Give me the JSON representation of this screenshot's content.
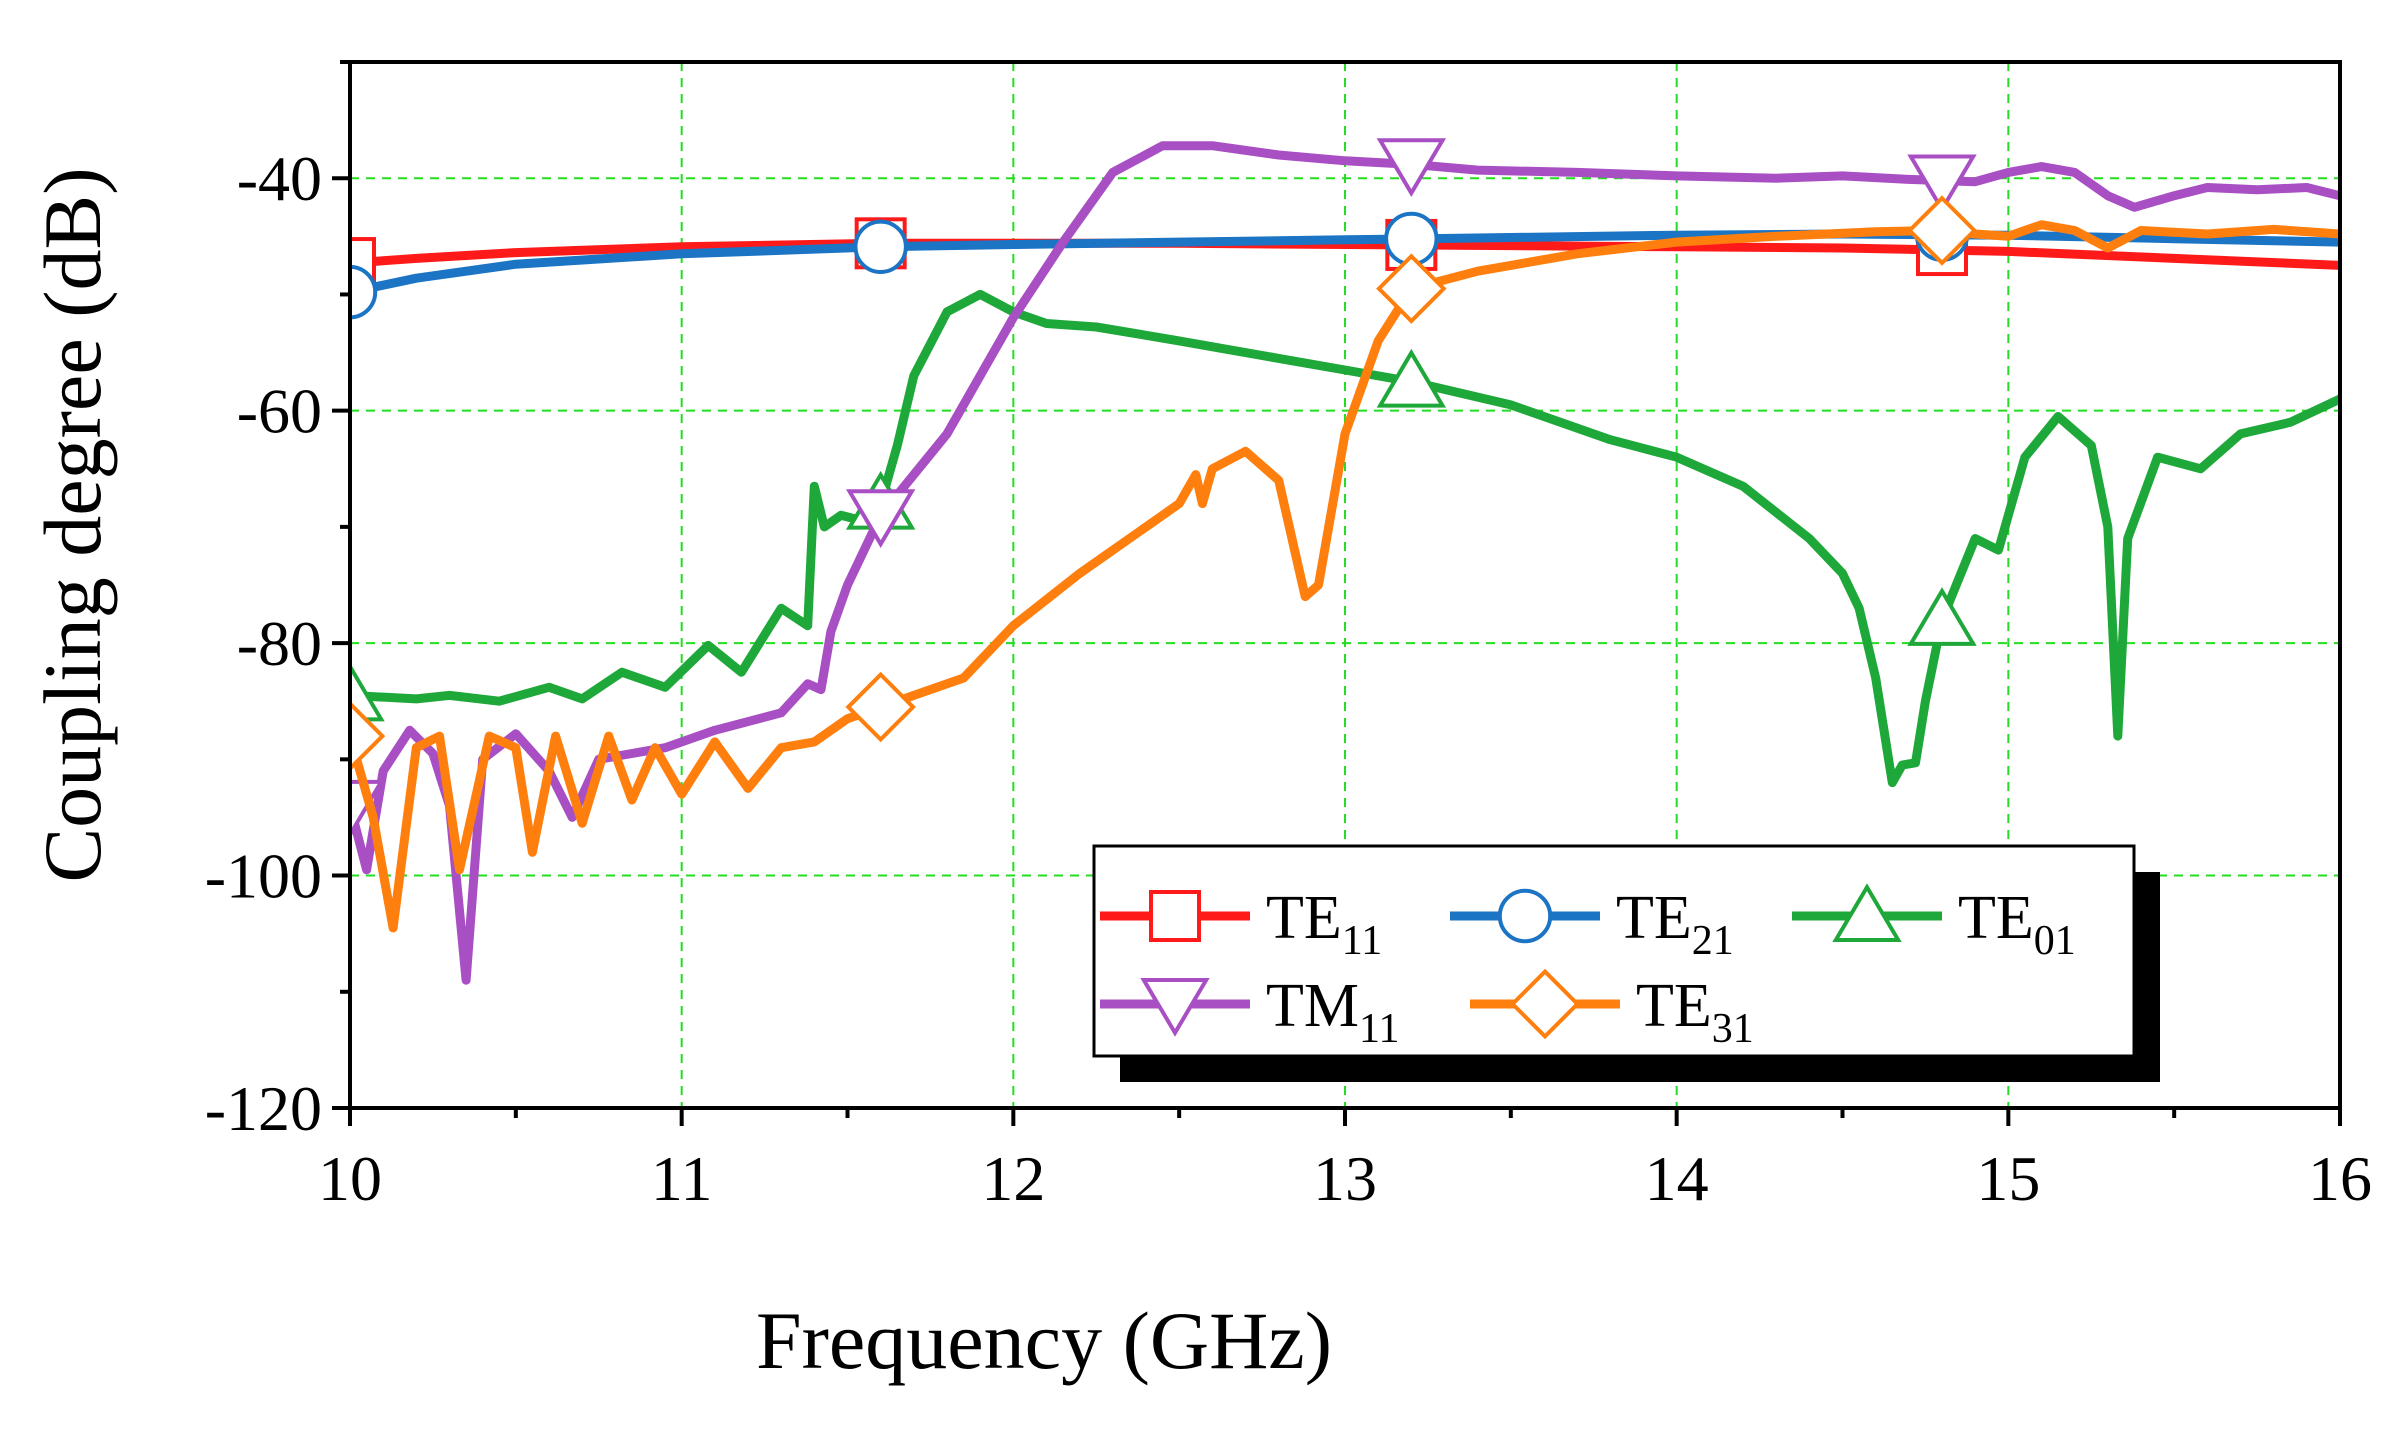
{
  "chart_data": {
    "type": "line",
    "title": "",
    "xlabel": "Frequency (GHz)",
    "ylabel": "Coupling degree (dB)",
    "xlim": [
      10,
      16
    ],
    "ylim": [
      -120,
      -30
    ],
    "x_ticks": [
      10,
      11,
      12,
      13,
      14,
      15,
      16
    ],
    "x_tick_labels": [
      "10",
      "11",
      "12",
      "13",
      "14",
      "15",
      "16"
    ],
    "y_ticks": [
      -40,
      -60,
      -80,
      -100,
      -120
    ],
    "y_tick_labels": [
      "-40",
      "-60",
      "-80",
      "-100",
      "-120"
    ],
    "grid": true,
    "legend_position": "bottom-right",
    "series": [
      {
        "name": "TE11",
        "base": "TE",
        "sub": "11",
        "color": "#ff1a1a",
        "marker": "square",
        "marker_x": [
          10.0,
          11.6,
          13.2,
          14.8
        ],
        "points": [
          [
            10.0,
            -47.3
          ],
          [
            10.2,
            -46.9
          ],
          [
            10.5,
            -46.4
          ],
          [
            11.0,
            -45.9
          ],
          [
            11.6,
            -45.6
          ],
          [
            12.0,
            -45.6
          ],
          [
            12.5,
            -45.6
          ],
          [
            13.0,
            -45.7
          ],
          [
            13.5,
            -45.8
          ],
          [
            14.0,
            -45.9
          ],
          [
            14.5,
            -46.0
          ],
          [
            15.0,
            -46.3
          ],
          [
            15.5,
            -46.9
          ],
          [
            16.0,
            -47.5
          ]
        ]
      },
      {
        "name": "TE21",
        "base": "TE",
        "sub": "21",
        "color": "#1c74c4",
        "marker": "circle",
        "marker_x": [
          10.0,
          11.6,
          13.2,
          14.8
        ],
        "points": [
          [
            10.0,
            -49.8
          ],
          [
            10.2,
            -48.6
          ],
          [
            10.5,
            -47.4
          ],
          [
            11.0,
            -46.5
          ],
          [
            11.6,
            -45.9
          ],
          [
            12.0,
            -45.7
          ],
          [
            12.5,
            -45.5
          ],
          [
            13.0,
            -45.3
          ],
          [
            13.5,
            -45.1
          ],
          [
            14.0,
            -44.9
          ],
          [
            14.5,
            -44.8
          ],
          [
            15.0,
            -44.9
          ],
          [
            15.5,
            -45.2
          ],
          [
            16.0,
            -45.5
          ]
        ]
      },
      {
        "name": "TE01",
        "base": "TE",
        "sub": "01",
        "color": "#1fa83a",
        "marker": "triangle-up",
        "marker_x": [
          10.0,
          11.6,
          13.2,
          14.8
        ],
        "points": [
          [
            10.0,
            -84.5
          ],
          [
            10.2,
            -84.8
          ],
          [
            10.3,
            -84.5
          ],
          [
            10.45,
            -85.0
          ],
          [
            10.6,
            -83.8
          ],
          [
            10.7,
            -84.8
          ],
          [
            10.82,
            -82.5
          ],
          [
            10.95,
            -83.8
          ],
          [
            11.08,
            -80.2
          ],
          [
            11.18,
            -82.5
          ],
          [
            11.3,
            -77.0
          ],
          [
            11.38,
            -78.5
          ],
          [
            11.4,
            -66.5
          ],
          [
            11.43,
            -70.0
          ],
          [
            11.48,
            -69.0
          ],
          [
            11.55,
            -69.5
          ],
          [
            11.6,
            -68.0
          ],
          [
            11.65,
            -63.0
          ],
          [
            11.7,
            -57.0
          ],
          [
            11.8,
            -51.5
          ],
          [
            11.9,
            -50.0
          ],
          [
            12.0,
            -51.5
          ],
          [
            12.1,
            -52.5
          ],
          [
            12.25,
            -52.8
          ],
          [
            12.5,
            -54.0
          ],
          [
            12.8,
            -55.5
          ],
          [
            13.0,
            -56.5
          ],
          [
            13.2,
            -57.5
          ],
          [
            13.5,
            -59.5
          ],
          [
            13.8,
            -62.5
          ],
          [
            14.0,
            -64.0
          ],
          [
            14.2,
            -66.5
          ],
          [
            14.4,
            -71.0
          ],
          [
            14.5,
            -74.0
          ],
          [
            14.55,
            -77.0
          ],
          [
            14.6,
            -83.0
          ],
          [
            14.65,
            -92.0
          ],
          [
            14.68,
            -90.5
          ],
          [
            14.72,
            -90.3
          ],
          [
            14.75,
            -85.0
          ],
          [
            14.8,
            -78.0
          ],
          [
            14.9,
            -71.0
          ],
          [
            14.97,
            -72.0
          ],
          [
            15.05,
            -64.0
          ],
          [
            15.15,
            -60.5
          ],
          [
            15.25,
            -63.0
          ],
          [
            15.3,
            -70.0
          ],
          [
            15.33,
            -88.0
          ],
          [
            15.36,
            -71.0
          ],
          [
            15.45,
            -64.0
          ],
          [
            15.58,
            -65.0
          ],
          [
            15.7,
            -62.0
          ],
          [
            15.85,
            -61.0
          ],
          [
            16.0,
            -59.0
          ]
        ]
      },
      {
        "name": "TM11",
        "base": "TM",
        "sub": "11",
        "color": "#a84fc4",
        "marker": "triangle-down",
        "marker_x": [
          10.0,
          11.6,
          13.2,
          14.8
        ],
        "points": [
          [
            10.0,
            -94.0
          ],
          [
            10.05,
            -99.5
          ],
          [
            10.1,
            -91.0
          ],
          [
            10.18,
            -87.5
          ],
          [
            10.25,
            -89.5
          ],
          [
            10.3,
            -94.0
          ],
          [
            10.35,
            -109.0
          ],
          [
            10.4,
            -90.0
          ],
          [
            10.5,
            -87.8
          ],
          [
            10.6,
            -91.0
          ],
          [
            10.67,
            -95.0
          ],
          [
            10.75,
            -90.0
          ],
          [
            10.85,
            -89.5
          ],
          [
            10.95,
            -89.0
          ],
          [
            11.1,
            -87.5
          ],
          [
            11.3,
            -86.0
          ],
          [
            11.38,
            -83.5
          ],
          [
            11.42,
            -84.0
          ],
          [
            11.45,
            -79.0
          ],
          [
            11.5,
            -75.0
          ],
          [
            11.6,
            -69.0
          ],
          [
            11.8,
            -62.0
          ],
          [
            12.0,
            -52.0
          ],
          [
            12.15,
            -45.5
          ],
          [
            12.3,
            -39.5
          ],
          [
            12.45,
            -37.2
          ],
          [
            12.6,
            -37.2
          ],
          [
            12.8,
            -38.0
          ],
          [
            13.0,
            -38.5
          ],
          [
            13.2,
            -38.8
          ],
          [
            13.4,
            -39.3
          ],
          [
            13.7,
            -39.5
          ],
          [
            14.0,
            -39.8
          ],
          [
            14.3,
            -40.0
          ],
          [
            14.5,
            -39.8
          ],
          [
            14.7,
            -40.1
          ],
          [
            14.9,
            -40.3
          ],
          [
            15.0,
            -39.5
          ],
          [
            15.1,
            -39.0
          ],
          [
            15.2,
            -39.5
          ],
          [
            15.3,
            -41.5
          ],
          [
            15.38,
            -42.5
          ],
          [
            15.5,
            -41.5
          ],
          [
            15.6,
            -40.8
          ],
          [
            15.75,
            -41.0
          ],
          [
            15.9,
            -40.8
          ],
          [
            16.0,
            -41.5
          ]
        ]
      },
      {
        "name": "TE31",
        "base": "TE",
        "sub": "31",
        "color": "#ff7f0e",
        "marker": "diamond",
        "marker_x": [
          10.0,
          11.6,
          13.2,
          14.8
        ],
        "points": [
          [
            10.0,
            -88.0
          ],
          [
            10.07,
            -95.0
          ],
          [
            10.13,
            -104.5
          ],
          [
            10.2,
            -89.0
          ],
          [
            10.27,
            -88.0
          ],
          [
            10.33,
            -99.5
          ],
          [
            10.42,
            -88.0
          ],
          [
            10.5,
            -89.0
          ],
          [
            10.55,
            -98.0
          ],
          [
            10.62,
            -88.0
          ],
          [
            10.7,
            -95.5
          ],
          [
            10.78,
            -88.0
          ],
          [
            10.85,
            -93.5
          ],
          [
            10.92,
            -89.0
          ],
          [
            11.0,
            -93.0
          ],
          [
            11.1,
            -88.5
          ],
          [
            11.2,
            -92.5
          ],
          [
            11.3,
            -89.0
          ],
          [
            11.4,
            -88.5
          ],
          [
            11.5,
            -86.5
          ],
          [
            11.6,
            -85.5
          ],
          [
            11.7,
            -84.5
          ],
          [
            11.85,
            -83.0
          ],
          [
            12.0,
            -78.5
          ],
          [
            12.2,
            -74.0
          ],
          [
            12.4,
            -70.0
          ],
          [
            12.5,
            -68.0
          ],
          [
            12.55,
            -65.5
          ],
          [
            12.57,
            -68.0
          ],
          [
            12.6,
            -65.0
          ],
          [
            12.7,
            -63.5
          ],
          [
            12.8,
            -66.0
          ],
          [
            12.88,
            -76.0
          ],
          [
            12.92,
            -75.0
          ],
          [
            13.0,
            -62.0
          ],
          [
            13.1,
            -54.0
          ],
          [
            13.2,
            -49.5
          ],
          [
            13.4,
            -48.0
          ],
          [
            13.7,
            -46.5
          ],
          [
            14.0,
            -45.5
          ],
          [
            14.3,
            -45.0
          ],
          [
            14.6,
            -44.6
          ],
          [
            14.8,
            -44.5
          ],
          [
            14.9,
            -44.8
          ],
          [
            15.0,
            -45.0
          ],
          [
            15.1,
            -44.0
          ],
          [
            15.2,
            -44.5
          ],
          [
            15.3,
            -46.0
          ],
          [
            15.4,
            -44.5
          ],
          [
            15.6,
            -44.8
          ],
          [
            15.8,
            -44.4
          ],
          [
            16.0,
            -44.8
          ]
        ]
      }
    ]
  }
}
